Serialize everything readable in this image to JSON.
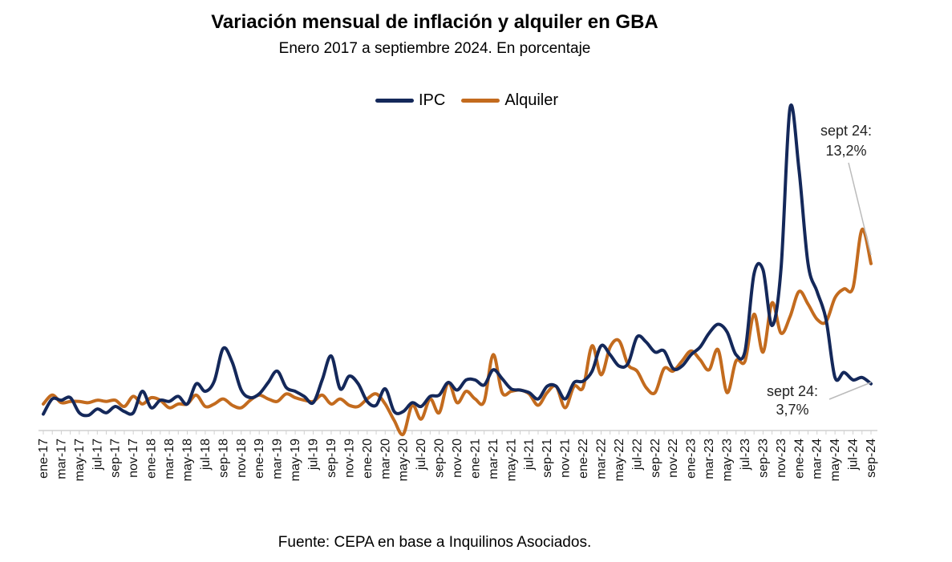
{
  "chart_data": {
    "type": "line",
    "title": "Variación mensual de inflación y alquiler en GBA",
    "subtitle": "Enero 2017 a septiembre 2024. En porcentaje",
    "source": "Fuente: CEPA en base a Inquilinos Asociados.",
    "xlabel": "",
    "ylabel": "",
    "ylim": [
      0,
      26
    ],
    "grid": false,
    "legend_position": "top-center",
    "categories": [
      "ene-17",
      "feb-17",
      "mar-17",
      "abr-17",
      "may-17",
      "jun-17",
      "jul-17",
      "ago-17",
      "sep-17",
      "oct-17",
      "nov-17",
      "dic-17",
      "ene-18",
      "feb-18",
      "mar-18",
      "abr-18",
      "may-18",
      "jun-18",
      "jul-18",
      "ago-18",
      "sep-18",
      "oct-18",
      "nov-18",
      "dic-18",
      "ene-19",
      "feb-19",
      "mar-19",
      "abr-19",
      "may-19",
      "jun-19",
      "jul-19",
      "ago-19",
      "sep-19",
      "oct-19",
      "nov-19",
      "dic-19",
      "ene-20",
      "feb-20",
      "mar-20",
      "abr-20",
      "may-20",
      "jun-20",
      "jul-20",
      "ago-20",
      "sep-20",
      "oct-20",
      "nov-20",
      "dic-20",
      "ene-21",
      "feb-21",
      "mar-21",
      "abr-21",
      "may-21",
      "jun-21",
      "jul-21",
      "ago-21",
      "sep-21",
      "oct-21",
      "nov-21",
      "dic-21",
      "ene-22",
      "feb-22",
      "mar-22",
      "abr-22",
      "may-22",
      "jun-22",
      "jul-22",
      "ago-22",
      "sep-22",
      "oct-22",
      "nov-22",
      "dic-22",
      "ene-23",
      "feb-23",
      "mar-23",
      "abr-23",
      "may-23",
      "jun-23",
      "jul-23",
      "ago-23",
      "sep-23",
      "oct-23",
      "nov-23",
      "dic-23",
      "ene-24",
      "feb-24",
      "mar-24",
      "abr-24",
      "may-24",
      "jun-24",
      "jul-24",
      "ago-24",
      "sep-24"
    ],
    "tick_labels": [
      "ene-17",
      "mar-17",
      "may-17",
      "jul-17",
      "sep-17",
      "nov-17",
      "ene-18",
      "mar-18",
      "may-18",
      "jul-18",
      "sep-18",
      "nov-18",
      "ene-19",
      "mar-19",
      "may-19",
      "jul-19",
      "sep-19",
      "nov-19",
      "ene-20",
      "mar-20",
      "may-20",
      "jul-20",
      "sep-20",
      "nov-20",
      "ene-21",
      "mar-21",
      "may-21",
      "jul-21",
      "sep-21",
      "nov-21",
      "ene-22",
      "mar-22",
      "may-22",
      "jul-22",
      "sep-22",
      "nov-22",
      "ene-23",
      "mar-23",
      "may-23",
      "jul-23",
      "sep-23",
      "nov-23",
      "ene-24",
      "mar-24",
      "may-24",
      "jul-24",
      "sep-24"
    ],
    "series": [
      {
        "name": "IPC",
        "color": "#14285a",
        "values": [
          1.3,
          2.5,
          2.4,
          2.6,
          1.4,
          1.2,
          1.7,
          1.4,
          1.9,
          1.5,
          1.4,
          3.1,
          1.8,
          2.4,
          2.3,
          2.7,
          2.1,
          3.7,
          3.1,
          3.9,
          6.5,
          5.4,
          3.2,
          2.6,
          2.9,
          3.8,
          4.7,
          3.4,
          3.1,
          2.7,
          2.2,
          4.0,
          5.9,
          3.3,
          4.3,
          3.7,
          2.3,
          2.0,
          3.3,
          1.5,
          1.5,
          2.2,
          1.9,
          2.7,
          2.8,
          3.8,
          3.2,
          4.0,
          4.0,
          3.6,
          4.8,
          4.1,
          3.3,
          3.2,
          3.0,
          2.5,
          3.5,
          3.5,
          2.5,
          3.8,
          3.9,
          4.7,
          6.7,
          6.0,
          5.1,
          5.3,
          7.4,
          7.0,
          6.2,
          6.3,
          4.9,
          5.1,
          6.0,
          6.6,
          7.7,
          8.4,
          7.8,
          6.0,
          6.3,
          12.4,
          12.7,
          8.3,
          12.8,
          25.5,
          20.6,
          13.2,
          11.0,
          8.8,
          4.2,
          4.6,
          4.0,
          4.2,
          3.7
        ]
      },
      {
        "name": "Alquiler",
        "color": "#c36b1e",
        "values": [
          2.1,
          2.8,
          2.2,
          2.3,
          2.3,
          2.2,
          2.4,
          2.3,
          2.4,
          1.9,
          2.7,
          2.1,
          2.6,
          2.4,
          1.8,
          2.1,
          2.1,
          2.8,
          1.9,
          2.1,
          2.5,
          2.0,
          1.8,
          2.4,
          2.8,
          2.5,
          2.3,
          2.9,
          2.6,
          2.4,
          2.3,
          2.8,
          2.1,
          2.5,
          2.0,
          1.9,
          2.5,
          2.9,
          2.1,
          0.8,
          -0.3,
          2.0,
          0.9,
          2.5,
          1.4,
          3.8,
          2.2,
          3.1,
          2.5,
          2.3,
          6.0,
          3.0,
          3.1,
          3.2,
          2.9,
          2.0,
          3.0,
          3.5,
          1.8,
          3.5,
          3.4,
          6.7,
          4.4,
          6.6,
          7.1,
          5.2,
          4.7,
          3.4,
          3.0,
          4.9,
          4.7,
          5.5,
          6.3,
          5.6,
          4.8,
          6.4,
          3.0,
          5.5,
          5.5,
          9.2,
          6.2,
          10.1,
          7.7,
          9.0,
          11.0,
          10.0,
          8.8,
          8.6,
          10.5,
          11.2,
          11.3,
          15.9,
          13.2
        ]
      }
    ],
    "legend": [
      "IPC",
      "Alquiler"
    ],
    "annotations": [
      {
        "label_line1": "sept 24:",
        "label_line2": "13,2%",
        "series": "Alquiler",
        "category": "sep-24",
        "value": 13.2
      },
      {
        "label_line1": "sept 24:",
        "label_line2": "3,7%",
        "series": "IPC",
        "category": "sep-24",
        "value": 3.7
      }
    ]
  }
}
